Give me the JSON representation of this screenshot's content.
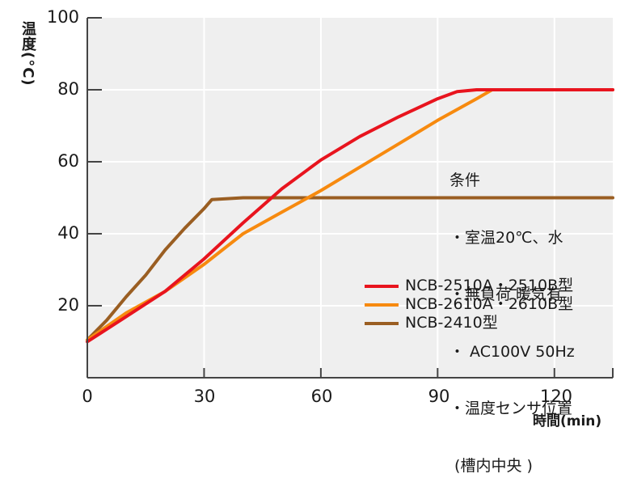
{
  "chart_data": {
    "type": "line",
    "title": "",
    "xlabel": "時間(min)",
    "ylabel": "温度(°C)",
    "xlim": [
      0,
      135
    ],
    "ylim": [
      0,
      100
    ],
    "x_ticks": [
      0,
      30,
      60,
      90,
      120
    ],
    "y_ticks": [
      20,
      40,
      60,
      80,
      100
    ],
    "grid": true,
    "background": "#efefef",
    "legend_position": "inside-lower-right",
    "series": [
      {
        "name": "NCB-2510A・2510B型",
        "color": "#e8141e",
        "points": [
          [
            0,
            10
          ],
          [
            10,
            17
          ],
          [
            20,
            24
          ],
          [
            30,
            33
          ],
          [
            40,
            43
          ],
          [
            50,
            52.5
          ],
          [
            60,
            60.5
          ],
          [
            70,
            67
          ],
          [
            80,
            72.5
          ],
          [
            90,
            77.5
          ],
          [
            95,
            79.5
          ],
          [
            100,
            80
          ],
          [
            110,
            80
          ],
          [
            120,
            80
          ],
          [
            135,
            80
          ]
        ]
      },
      {
        "name": "NCB-2610A・2610B型",
        "color": "#f78a0f",
        "points": [
          [
            0,
            10.5
          ],
          [
            10,
            18
          ],
          [
            20,
            24
          ],
          [
            30,
            31.5
          ],
          [
            40,
            40
          ],
          [
            50,
            46
          ],
          [
            60,
            52
          ],
          [
            70,
            58.5
          ],
          [
            80,
            65
          ],
          [
            90,
            71.5
          ],
          [
            100,
            77.5
          ],
          [
            104,
            80
          ],
          [
            110,
            80
          ],
          [
            120,
            80
          ],
          [
            135,
            80
          ]
        ]
      },
      {
        "name": "NCB-2410型",
        "color": "#9a5e22",
        "points": [
          [
            0,
            10.5
          ],
          [
            5,
            16
          ],
          [
            10,
            22.5
          ],
          [
            15,
            28.5
          ],
          [
            20,
            35.5
          ],
          [
            25,
            41.5
          ],
          [
            30,
            47
          ],
          [
            32,
            49.5
          ],
          [
            40,
            50
          ],
          [
            50,
            50
          ],
          [
            60,
            50
          ],
          [
            80,
            50
          ],
          [
            100,
            50
          ],
          [
            120,
            50
          ],
          [
            135,
            50
          ]
        ]
      }
    ]
  },
  "axes": {
    "y_label": "温度(°C)",
    "x_label": "時間(min)",
    "y_ticks": [
      "100",
      "80",
      "60",
      "40",
      "20"
    ],
    "x_ticks": [
      "0",
      "30",
      "60",
      "90",
      "120"
    ]
  },
  "conditions": {
    "title": "条件",
    "lines": [
      "・室温20℃、水",
      "・無負荷 暖気有",
      "・ AC100V 50Hz",
      "・温度センサ位置",
      " (槽内中央 )"
    ]
  },
  "legend": [
    {
      "label": "NCB-2510A・2510B型",
      "color": "#e8141e"
    },
    {
      "label": "NCB-2610A・2610B型",
      "color": "#f78a0f"
    },
    {
      "label": "NCB-2410型",
      "color": "#9a5e22"
    }
  ]
}
